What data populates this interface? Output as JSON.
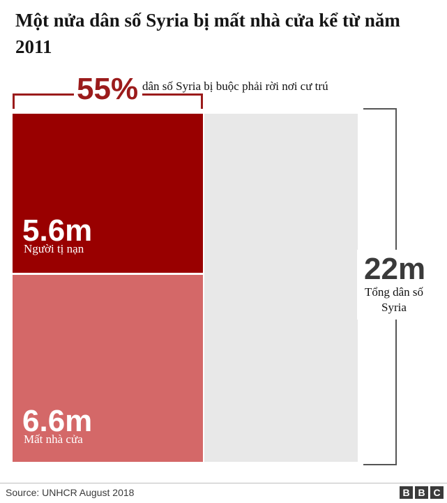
{
  "title": "Một nửa dân số Syria bị mất nhà cửa kể từ năm 2011",
  "highlight": {
    "percent": "55%",
    "caption": "dân số Syria bị buộc phải rời nơi cư trú"
  },
  "blocks": {
    "refugees": {
      "value": "5.6m",
      "label": "Người tị nạn"
    },
    "displaced": {
      "value": "6.6m",
      "label": "Mất nhà cửa"
    }
  },
  "total": {
    "value": "22m",
    "label_line1": "Tổng dân số",
    "label_line2": "Syria"
  },
  "source": "Source: UNHCR August 2018",
  "logo": {
    "letters": [
      "B",
      "B",
      "C"
    ]
  },
  "colors": {
    "refugees": "#990000",
    "displaced": "#d46868",
    "remaining": "#e8e8e8",
    "bracket": "#9b1b1b"
  },
  "chart_data": {
    "type": "bar",
    "title": "Một nửa dân số Syria bị mất nhà cửa kể từ năm 2011",
    "units": "million people",
    "total_population": 22,
    "displaced_share_percent": 55,
    "segments": [
      {
        "label": "Người tị nạn",
        "value": 5.6
      },
      {
        "label": "Mất nhà cửa",
        "value": 6.6
      }
    ]
  }
}
